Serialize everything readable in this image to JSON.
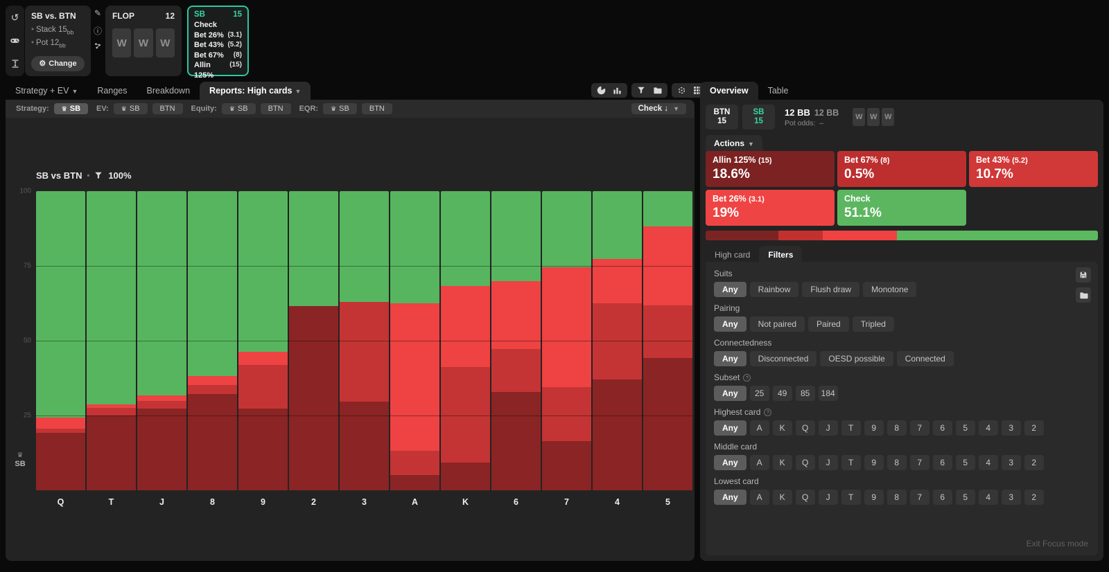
{
  "colors": {
    "teal": "#36d6a4",
    "check_green": "#57b55f",
    "bet26_red": "#ee4243",
    "bet43_red": "#c43434",
    "bet67_red": "#ad2c2c",
    "allin_maroon": "#8b2424",
    "btn_allin": "#7c2222",
    "btn_bet67": "#bd2f2f",
    "btn_bet43": "#d13838",
    "btn_bet26": "#ef4444",
    "btn_check": "#5cb660"
  },
  "header": {
    "sidebar_icons": [
      "restart-icon",
      "gamepad-icon",
      "stack-depth-icon"
    ],
    "tool_icons": [
      "edit-icon",
      "info-icon",
      "share-icon"
    ],
    "match": {
      "title": "SB vs. BTN",
      "stats": [
        {
          "label": "Stack",
          "value": "15",
          "unit": "bb"
        },
        {
          "label": "Pot",
          "value": "12",
          "unit": "bb"
        }
      ],
      "change_label": "Change",
      "gear_icon": "⚙"
    },
    "flop": {
      "label": "FLOP",
      "pot": "12",
      "cards": [
        "W",
        "W",
        "W"
      ]
    },
    "node": {
      "player": "SB",
      "stack": "15",
      "actions": [
        {
          "label": "Check",
          "value": ""
        },
        {
          "label": "Bet 26%",
          "value": "(3.1)"
        },
        {
          "label": "Bet 43%",
          "value": "(5.2)"
        },
        {
          "label": "Bet 67%",
          "value": "(8)"
        },
        {
          "label": "Allin 125%",
          "value": "(15)"
        }
      ]
    }
  },
  "nav": {
    "tabs": [
      {
        "label": "Strategy + EV",
        "caret": true,
        "active": false
      },
      {
        "label": "Ranges",
        "caret": false,
        "active": false
      },
      {
        "label": "Breakdown",
        "caret": false,
        "active": false
      },
      {
        "label": "Reports: High cards",
        "caret": true,
        "active": true
      }
    ],
    "toolbar_groups": [
      [
        "pie-chart-icon",
        "bar-chart-icon"
      ],
      [
        "filter-icon",
        "folder-icon"
      ],
      [
        "crosshair-icon",
        "grid-icon",
        "square-icon"
      ]
    ]
  },
  "filter_bar": {
    "groups": [
      {
        "label": "Strategy:",
        "chips": [
          {
            "text": "SB",
            "crown": true,
            "selected": true
          }
        ]
      },
      {
        "label": "EV:",
        "chips": [
          {
            "text": "SB",
            "crown": true,
            "selected": false
          },
          {
            "text": "BTN",
            "crown": false,
            "selected": false
          }
        ]
      },
      {
        "label": "Equity:",
        "chips": [
          {
            "text": "SB",
            "crown": true,
            "selected": false
          },
          {
            "text": "BTN",
            "crown": false,
            "selected": false
          }
        ]
      },
      {
        "label": "EQR:",
        "chips": [
          {
            "text": "SB",
            "crown": true,
            "selected": false
          },
          {
            "text": "BTN",
            "crown": false,
            "selected": false
          }
        ]
      }
    ],
    "action_select": "Check ↓"
  },
  "chart_data": {
    "type": "bar",
    "stacked": true,
    "title": "SB vs BTN",
    "filter_pct": "100%",
    "axis_player": "SB",
    "categories": [
      "Q",
      "T",
      "J",
      "8",
      "9",
      "2",
      "3",
      "A",
      "K",
      "6",
      "7",
      "4",
      "5"
    ],
    "yticks": [
      100,
      75,
      50,
      25
    ],
    "ylim": [
      0,
      100
    ],
    "legend": "none",
    "grid": true,
    "series": [
      {
        "name": "Check",
        "color": "#57b55f",
        "values": [
          75.7,
          71.3,
          68.3,
          61.8,
          53.7,
          38.4,
          37.0,
          37.5,
          31.6,
          30.0,
          25.5,
          22.8,
          11.7
        ]
      },
      {
        "name": "Bet 26% (3.1)",
        "color": "#ee4243",
        "values": [
          3.7,
          1.1,
          1.9,
          3.0,
          4.4,
          0,
          0,
          49.2,
          27.3,
          22.7,
          40.0,
          14.8,
          26.6
        ]
      },
      {
        "name": "Bet 43% (5.2)",
        "color": "#c43434",
        "values": [
          1.3,
          2.6,
          2.6,
          3.0,
          14.6,
          0,
          33.3,
          8.2,
          31.9,
          14.4,
          18.0,
          25.4,
          17.6
        ]
      },
      {
        "name": "Bet 67% (8)",
        "color": "#ad2c2c",
        "values": [
          0,
          0,
          0,
          0,
          0,
          0,
          0,
          0,
          0,
          0,
          0,
          0,
          0
        ]
      },
      {
        "name": "Allin 125% (15)",
        "color": "#8b2424",
        "values": [
          19.3,
          25.0,
          27.2,
          32.2,
          27.3,
          61.6,
          29.7,
          5.1,
          9.2,
          32.9,
          16.5,
          37.0,
          44.1
        ]
      }
    ]
  },
  "overview": {
    "tabs": [
      {
        "label": "Overview",
        "active": true
      },
      {
        "label": "Table",
        "active": false
      }
    ],
    "players": [
      {
        "name": "BTN",
        "stack": "15",
        "color": "#ffffff"
      },
      {
        "name": "SB",
        "stack": "15",
        "color": "#36d6a4"
      }
    ],
    "pot": {
      "bold": "12 BB",
      "dim": "12 BB",
      "pot_odds_label": "Pot odds:",
      "pot_odds_value": "–"
    },
    "cards": [
      "W",
      "W",
      "W"
    ],
    "actions_tab": "Actions",
    "actions": [
      {
        "label": "Allin 125%",
        "size": "(15)",
        "value": "18.6%",
        "color": "#7c2222"
      },
      {
        "label": "Bet 67%",
        "size": "(8)",
        "value": "0.5%",
        "color": "#bd2f2f"
      },
      {
        "label": "Bet 43%",
        "size": "(5.2)",
        "value": "10.7%",
        "color": "#d13838"
      },
      {
        "label": "Bet 26%",
        "size": "(3.1)",
        "value": "19%",
        "color": "#ef4444"
      },
      {
        "label": "Check",
        "size": "",
        "value": "51.1%",
        "color": "#5cb660"
      }
    ],
    "distribution": [
      {
        "name": "allin",
        "color": "#7c2424",
        "pct": 18.6
      },
      {
        "name": "bet43",
        "color": "#c23030",
        "pct": 11.2
      },
      {
        "name": "bet26",
        "color": "#ee4243",
        "pct": 19.0
      },
      {
        "name": "check",
        "color": "#5cb960",
        "pct": 51.2
      }
    ]
  },
  "filters": {
    "tabs": [
      {
        "label": "High card",
        "active": false
      },
      {
        "label": "Filters",
        "active": true
      }
    ],
    "file_icons": [
      "save-icon",
      "folder-icon"
    ],
    "groups": [
      {
        "label": "Suits",
        "help": false,
        "compact": false,
        "options": [
          "Any",
          "Rainbow",
          "Flush draw",
          "Monotone"
        ],
        "selected": 0
      },
      {
        "label": "Pairing",
        "help": false,
        "compact": false,
        "options": [
          "Any",
          "Not paired",
          "Paired",
          "Tripled"
        ],
        "selected": 0
      },
      {
        "label": "Connectedness",
        "help": false,
        "compact": false,
        "options": [
          "Any",
          "Disconnected",
          "OESD possible",
          "Connected"
        ],
        "selected": 0
      },
      {
        "label": "Subset",
        "help": true,
        "compact": true,
        "options": [
          "Any",
          "25",
          "49",
          "85",
          "184"
        ],
        "selected": 0
      },
      {
        "label": "Highest card",
        "help": true,
        "compact": true,
        "options": [
          "Any",
          "A",
          "K",
          "Q",
          "J",
          "T",
          "9",
          "8",
          "7",
          "6",
          "5",
          "4",
          "3",
          "2"
        ],
        "selected": 0
      },
      {
        "label": "Middle card",
        "help": false,
        "compact": true,
        "options": [
          "Any",
          "A",
          "K",
          "Q",
          "J",
          "T",
          "9",
          "8",
          "7",
          "6",
          "5",
          "4",
          "3",
          "2"
        ],
        "selected": 0
      },
      {
        "label": "Lowest card",
        "help": false,
        "compact": true,
        "options": [
          "Any",
          "A",
          "K",
          "Q",
          "J",
          "T",
          "9",
          "8",
          "7",
          "6",
          "5",
          "4",
          "3",
          "2"
        ],
        "selected": 0
      }
    ],
    "exit_label": "Exit Focus mode"
  }
}
